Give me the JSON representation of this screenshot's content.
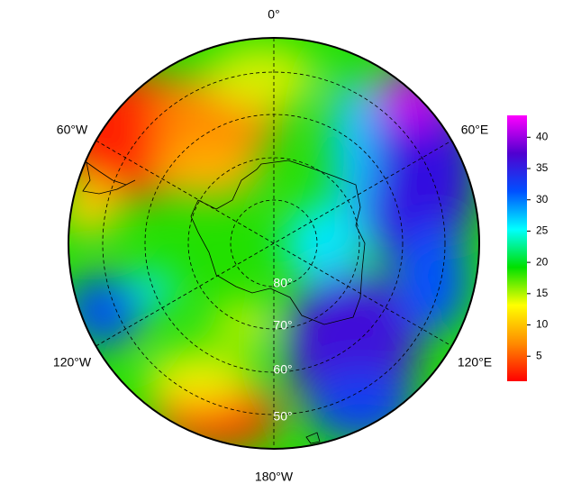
{
  "map": {
    "longitude_labels": [
      "0°",
      "60°E",
      "120°E",
      "180°W",
      "120°W",
      "60°W"
    ],
    "latitude_labels": [
      "80°",
      "70°",
      "60°",
      "50°"
    ],
    "colorbar": {
      "lim": [
        1,
        43.5
      ],
      "ticks": [
        5,
        10,
        15,
        20,
        25,
        30,
        35,
        40
      ],
      "colors": [
        "#ff0000",
        "#ff8c00",
        "#ffff00",
        "#00e000",
        "#00ffff",
        "#0050ff",
        "#5000d0",
        "#ff00ff"
      ]
    }
  }
}
